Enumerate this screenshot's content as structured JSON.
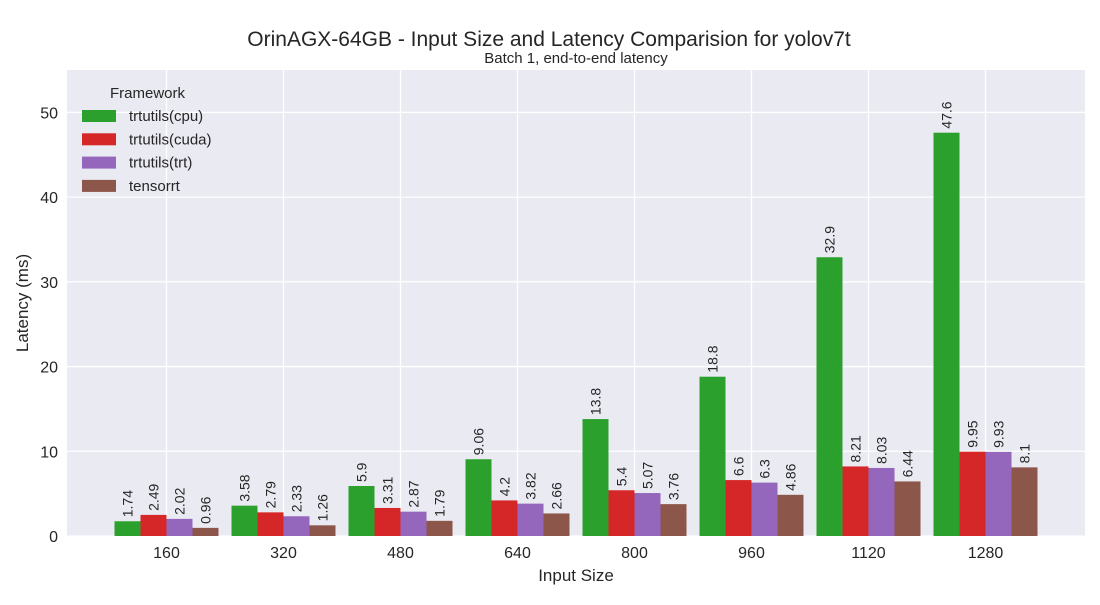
{
  "chart_data": {
    "type": "bar",
    "title": "OrinAGX-64GB - Input Size and Latency Comparision for yolov7t",
    "subtitle": "Batch 1, end-to-end latency",
    "xlabel": "Input Size",
    "ylabel": "Latency (ms)",
    "categories": [
      "160",
      "320",
      "480",
      "640",
      "800",
      "960",
      "1120",
      "1280"
    ],
    "ylim": [
      0,
      55
    ],
    "yticks": [
      0,
      10,
      20,
      30,
      40,
      50
    ],
    "grid": true,
    "legend": {
      "title": "Framework",
      "placement": "top-left"
    },
    "series": [
      {
        "name": "trtutils(cpu)",
        "color": "#2ca02c",
        "values": [
          1.74,
          3.58,
          5.9,
          9.06,
          13.8,
          18.8,
          32.9,
          47.6
        ],
        "labels": [
          "1.74",
          "3.58",
          "5.9",
          "9.06",
          "13.8",
          "18.8",
          "32.9",
          "47.6"
        ]
      },
      {
        "name": "trtutils(cuda)",
        "color": "#d62728",
        "values": [
          2.49,
          2.79,
          3.31,
          4.2,
          5.4,
          6.6,
          8.21,
          9.95
        ],
        "labels": [
          "2.49",
          "2.79",
          "3.31",
          "4.2",
          "5.4",
          "6.6",
          "8.21",
          "9.95"
        ]
      },
      {
        "name": "trtutils(trt)",
        "color": "#9467bd",
        "values": [
          2.02,
          2.33,
          2.87,
          3.82,
          5.07,
          6.3,
          8.03,
          9.93
        ],
        "labels": [
          "2.02",
          "2.33",
          "2.87",
          "3.82",
          "5.07",
          "6.3",
          "8.03",
          "9.93"
        ]
      },
      {
        "name": "tensorrt",
        "color": "#8c564b",
        "values": [
          0.96,
          1.26,
          1.79,
          2.66,
          3.76,
          4.86,
          6.44,
          8.1
        ],
        "labels": [
          "0.96",
          "1.26",
          "1.79",
          "2.66",
          "3.76",
          "4.86",
          "6.44",
          "8.1"
        ]
      }
    ]
  }
}
